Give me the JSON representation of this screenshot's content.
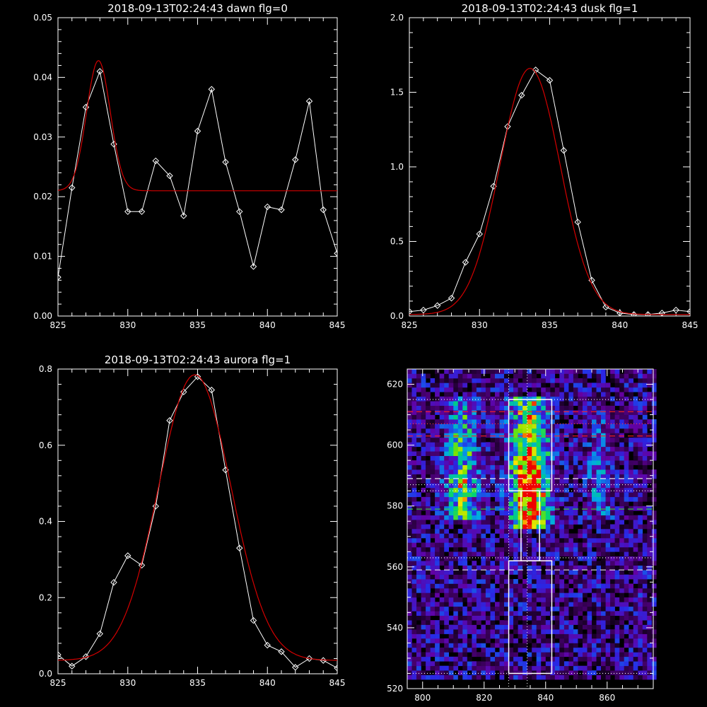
{
  "chart_data": [
    {
      "type": "line",
      "title": "2018-09-13T02:24:43 dawn flg=0",
      "xlim": [
        825,
        845
      ],
      "ylim": [
        0,
        0.05
      ],
      "x_ticks": [
        825,
        830,
        835,
        840,
        845
      ],
      "y_ticks": [
        0.0,
        0.01,
        0.02,
        0.03,
        0.04,
        0.05
      ],
      "y_tick_labels": [
        "0.00",
        "0.01",
        "0.02",
        "0.03",
        "0.04",
        "0.05"
      ],
      "series": [
        {
          "style": "observed",
          "color": "#ffffff",
          "marker": "diamond",
          "x": [
            825,
            826,
            827,
            828,
            829,
            830,
            831,
            832,
            833,
            834,
            835,
            836,
            837,
            838,
            839,
            840,
            841,
            842,
            843,
            844,
            845
          ],
          "y": [
            0.0065,
            0.0215,
            0.035,
            0.041,
            0.0288,
            0.0175,
            0.0175,
            0.026,
            0.0235,
            0.0168,
            0.031,
            0.038,
            0.0258,
            0.0175,
            0.0083,
            0.0183,
            0.0178,
            0.0262,
            0.036,
            0.0178,
            0.0105
          ]
        },
        {
          "style": "fit",
          "color": "#d40000",
          "model": "gaussian",
          "baseline": 0.021,
          "amplitude": 0.0218,
          "center": 827.9,
          "sigma": 0.85
        }
      ]
    },
    {
      "type": "line",
      "title": "2018-09-13T02:24:43 dusk flg=1",
      "xlim": [
        825,
        845
      ],
      "ylim": [
        0,
        2.0
      ],
      "x_ticks": [
        825,
        830,
        835,
        840,
        845
      ],
      "y_ticks": [
        0.0,
        0.5,
        1.0,
        1.5,
        2.0
      ],
      "y_tick_labels": [
        "0.0",
        "0.5",
        "1.0",
        "1.5",
        "2.0"
      ],
      "series": [
        {
          "style": "observed",
          "color": "#ffffff",
          "marker": "diamond",
          "x": [
            825,
            826,
            827,
            828,
            829,
            830,
            831,
            832,
            833,
            834,
            835,
            836,
            837,
            838,
            839,
            840,
            841,
            842,
            843,
            844,
            845
          ],
          "y": [
            0.03,
            0.04,
            0.07,
            0.12,
            0.36,
            0.55,
            0.87,
            1.27,
            1.48,
            1.65,
            1.58,
            1.11,
            0.63,
            0.24,
            0.06,
            0.02,
            0.01,
            0.01,
            0.02,
            0.04,
            0.03
          ]
        },
        {
          "style": "fit",
          "color": "#d40000",
          "model": "gaussian",
          "baseline": 0.01,
          "amplitude": 1.65,
          "center": 833.6,
          "sigma": 2.15
        }
      ]
    },
    {
      "type": "line",
      "title": "2018-09-13T02:24:43 aurora flg=1",
      "xlim": [
        825,
        845
      ],
      "ylim": [
        0,
        0.8
      ],
      "x_ticks": [
        825,
        830,
        835,
        840,
        845
      ],
      "y_ticks": [
        0.0,
        0.2,
        0.4,
        0.6,
        0.8
      ],
      "y_tick_labels": [
        "0.0",
        "0.2",
        "0.4",
        "0.6",
        "0.8"
      ],
      "series": [
        {
          "style": "observed",
          "color": "#ffffff",
          "marker": "diamond",
          "x": [
            825,
            826,
            827,
            828,
            829,
            830,
            831,
            832,
            833,
            834,
            835,
            836,
            837,
            838,
            839,
            840,
            841,
            842,
            843,
            844,
            845
          ],
          "y": [
            0.05,
            0.02,
            0.045,
            0.105,
            0.24,
            0.31,
            0.285,
            0.44,
            0.665,
            0.74,
            0.78,
            0.745,
            0.535,
            0.33,
            0.14,
            0.075,
            0.058,
            0.017,
            0.04,
            0.035,
            0.015
          ]
        },
        {
          "style": "fit",
          "color": "#d40000",
          "model": "gaussian",
          "baseline": 0.035,
          "amplitude": 0.75,
          "center": 834.8,
          "sigma": 2.6
        }
      ]
    },
    {
      "type": "heatmap",
      "title": "",
      "colormap": "rainbow",
      "xlim": [
        795,
        875
      ],
      "ylim": [
        520,
        625
      ],
      "x_ticks": [
        800,
        820,
        840,
        860
      ],
      "y_ticks": [
        520,
        540,
        560,
        580,
        600,
        620
      ],
      "emission_bands": [
        {
          "x_center": 812,
          "x_width": 5,
          "y_from": 575,
          "y_to": 615,
          "peak_y": 585,
          "peak": 0.55
        },
        {
          "x_center": 834,
          "x_width": 6,
          "y_from": 572,
          "y_to": 615,
          "peak_y": 585,
          "peak": 1.0
        },
        {
          "x_center": 857,
          "x_width": 4,
          "y_from": 575,
          "y_to": 612,
          "peak_y": 590,
          "peak": 0.22
        }
      ],
      "white_boxes": [
        {
          "x": [
            828,
            842
          ],
          "y": [
            585,
            615
          ]
        },
        {
          "x": [
            828,
            842
          ],
          "y": [
            525,
            562
          ]
        },
        {
          "x": [
            832,
            838
          ],
          "y": [
            562,
            585
          ]
        }
      ],
      "vertical_dotted_lines": [
        {
          "x": 828,
          "color": "#ffffff"
        },
        {
          "x": 834,
          "color": "#ffffff"
        }
      ],
      "horizontal_lines": [
        {
          "y": 615,
          "color": "#ffffff",
          "style": "dotted"
        },
        {
          "y": 611,
          "color": "#ff2020",
          "style": "dashed"
        },
        {
          "y": 607,
          "color": "#ff4040",
          "style": "dotted"
        },
        {
          "y": 603,
          "color": "#ff2020",
          "style": "dashed"
        },
        {
          "y": 589,
          "color": "#ffffff",
          "style": "dashed"
        },
        {
          "y": 587,
          "color": "#ffffff",
          "style": "dotted"
        },
        {
          "y": 585,
          "color": "#ffffff",
          "style": "dotted"
        },
        {
          "y": 579,
          "color": "#30e030",
          "style": "dashed"
        },
        {
          "y": 563,
          "color": "#ffffff",
          "style": "dotted"
        },
        {
          "y": 559,
          "color": "#ffffff",
          "style": "dashed"
        },
        {
          "y": 525,
          "color": "#ffffff",
          "style": "dotted"
        }
      ]
    }
  ]
}
